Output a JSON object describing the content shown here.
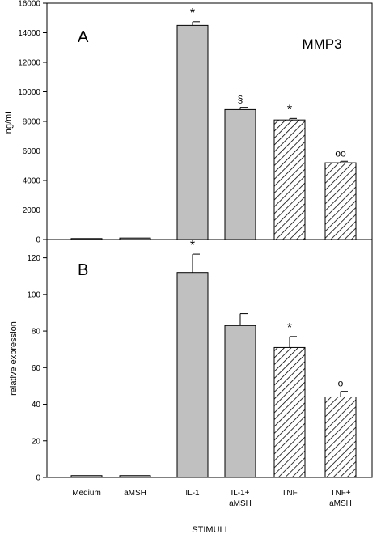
{
  "chart_data": [
    {
      "type": "bar",
      "panel_label": "A",
      "title": "MMP3",
      "ylabel": "ng/mL",
      "xlabel": "",
      "ylim": [
        0,
        16000
      ],
      "yticks": [
        0,
        2000,
        4000,
        6000,
        8000,
        10000,
        12000,
        14000,
        16000
      ],
      "categories": [
        "Medium",
        "aMSH",
        "IL-1",
        "IL-1+\naMSH",
        "TNF",
        "TNF+\naMSH"
      ],
      "values": [
        0,
        100,
        14500,
        8800,
        8100,
        5200
      ],
      "errors": [
        0,
        0,
        250,
        150,
        100,
        100
      ],
      "annotations": [
        "",
        "",
        "*",
        "§",
        "*",
        "oo"
      ],
      "fill": [
        "solid",
        "solid",
        "solid",
        "solid",
        "hatched",
        "hatched"
      ],
      "grid": false
    },
    {
      "type": "bar",
      "panel_label": "B",
      "title": "",
      "ylabel": "relative expression",
      "xlabel": "STIMULI",
      "ylim": [
        0,
        130
      ],
      "yticks": [
        0,
        20,
        40,
        60,
        80,
        100,
        120
      ],
      "categories": [
        "Medium",
        "aMSH",
        "IL-1",
        "IL-1+\naMSH",
        "TNF",
        "TNF+\naMSH"
      ],
      "values": [
        1,
        1,
        112,
        83,
        71,
        44
      ],
      "errors": [
        0,
        0,
        10,
        6.5,
        6,
        3
      ],
      "annotations": [
        "",
        "",
        "*",
        "",
        "*",
        "o"
      ],
      "fill": [
        "solid",
        "solid",
        "solid",
        "solid",
        "hatched",
        "hatched"
      ],
      "grid": false
    }
  ],
  "colors": {
    "bar_fill": "#c0c0c0",
    "hatch_background": "#ffffff",
    "stroke": "#000000"
  }
}
